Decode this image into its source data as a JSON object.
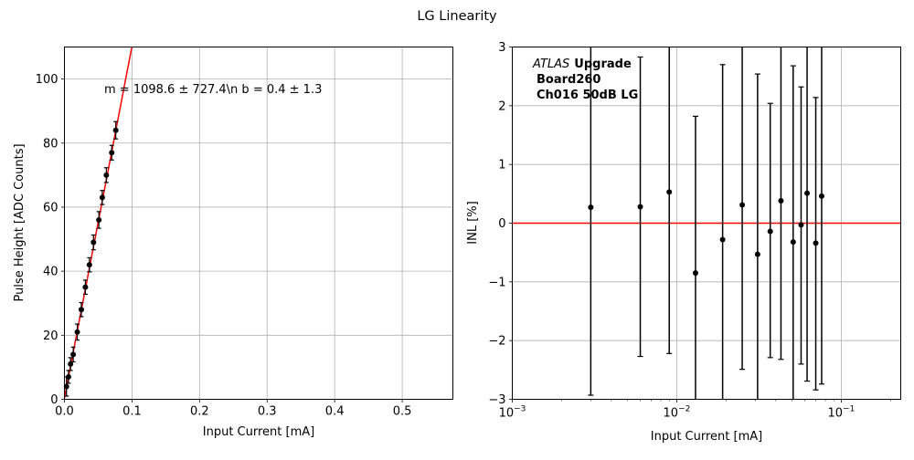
{
  "figure": {
    "title": "LG Linearity"
  },
  "chart_data": [
    {
      "type": "scatter",
      "title": "",
      "xlabel": "Input Current [mA]",
      "ylabel": "Pulse Height [ADC Counts]",
      "xlim": [
        0,
        0.575
      ],
      "ylim": [
        0,
        110
      ],
      "xscale": "linear",
      "grid": true,
      "xticks": [
        0.0,
        0.1,
        0.2,
        0.3,
        0.4,
        0.5
      ],
      "xtick_labels": [
        "0.0",
        "0.1",
        "0.2",
        "0.3",
        "0.4",
        "0.5"
      ],
      "yticks": [
        0,
        20,
        40,
        60,
        80,
        100
      ],
      "ytick_labels": [
        "0",
        "20",
        "40",
        "60",
        "80",
        "100"
      ],
      "annotation": "m = 1098.6 ± 727.4\\n b = 0.4 ± 1.3",
      "fit_line": {
        "slope": 1098.6,
        "intercept": 0.4,
        "color": "#ff0000"
      },
      "points": {
        "color": "#000000",
        "x": [
          0.003,
          0.006,
          0.009,
          0.013,
          0.019,
          0.025,
          0.031,
          0.037,
          0.043,
          0.051,
          0.056,
          0.062,
          0.07,
          0.076
        ],
        "y": [
          4,
          7,
          11,
          14,
          21,
          28,
          35,
          42,
          49,
          56,
          63,
          70,
          77,
          84
        ],
        "yerr": [
          3,
          2,
          2,
          2.3,
          2.5,
          2.2,
          2.2,
          2.2,
          2.3,
          2.6,
          2.2,
          2.3,
          2.3,
          2.7
        ]
      }
    },
    {
      "type": "scatter",
      "title": "",
      "xlabel": "Input Current [mA]",
      "ylabel": "INL [%]",
      "xlim": [
        0.001,
        0.23
      ],
      "ylim": [
        -3,
        3
      ],
      "xscale": "log",
      "grid": true,
      "xticks": [
        0.001,
        0.01,
        0.1
      ],
      "xtick_labels": [
        "10",
        "10",
        "10"
      ],
      "xtick_exponents": [
        "−3",
        "−2",
        "−1"
      ],
      "yticks": [
        -3,
        -2,
        -1,
        0,
        1,
        2,
        3
      ],
      "ytick_labels": [
        "−3",
        "−2",
        "−1",
        "0",
        "1",
        "2",
        "3"
      ],
      "reference_line": {
        "y": 0,
        "color": "#ff0000"
      },
      "legend_text": {
        "line1_italic": "ATLAS",
        "line1_bold": "Upgrade",
        "line2": "Board260",
        "line3": "Ch016 50dB LG"
      },
      "points": {
        "color": "#000000",
        "x": [
          0.003,
          0.006,
          0.009,
          0.013,
          0.019,
          0.025,
          0.031,
          0.037,
          0.043,
          0.051,
          0.057,
          0.062,
          0.07,
          0.076
        ],
        "y": [
          0.27,
          0.28,
          0.53,
          -0.85,
          -0.28,
          0.31,
          -0.53,
          -0.14,
          0.38,
          -0.32,
          -0.03,
          0.51,
          -0.34,
          0.46
        ],
        "yerr_low": [
          3.2,
          2.55,
          2.75,
          2.5,
          3.0,
          2.8,
          3.0,
          2.15,
          2.7,
          3.0,
          2.37,
          3.2,
          2.5,
          3.2
        ],
        "yerr_high": [
          3.2,
          2.55,
          2.75,
          2.67,
          2.98,
          2.8,
          3.07,
          2.18,
          2.7,
          3.0,
          2.35,
          3.2,
          2.48,
          3.2
        ]
      }
    }
  ]
}
